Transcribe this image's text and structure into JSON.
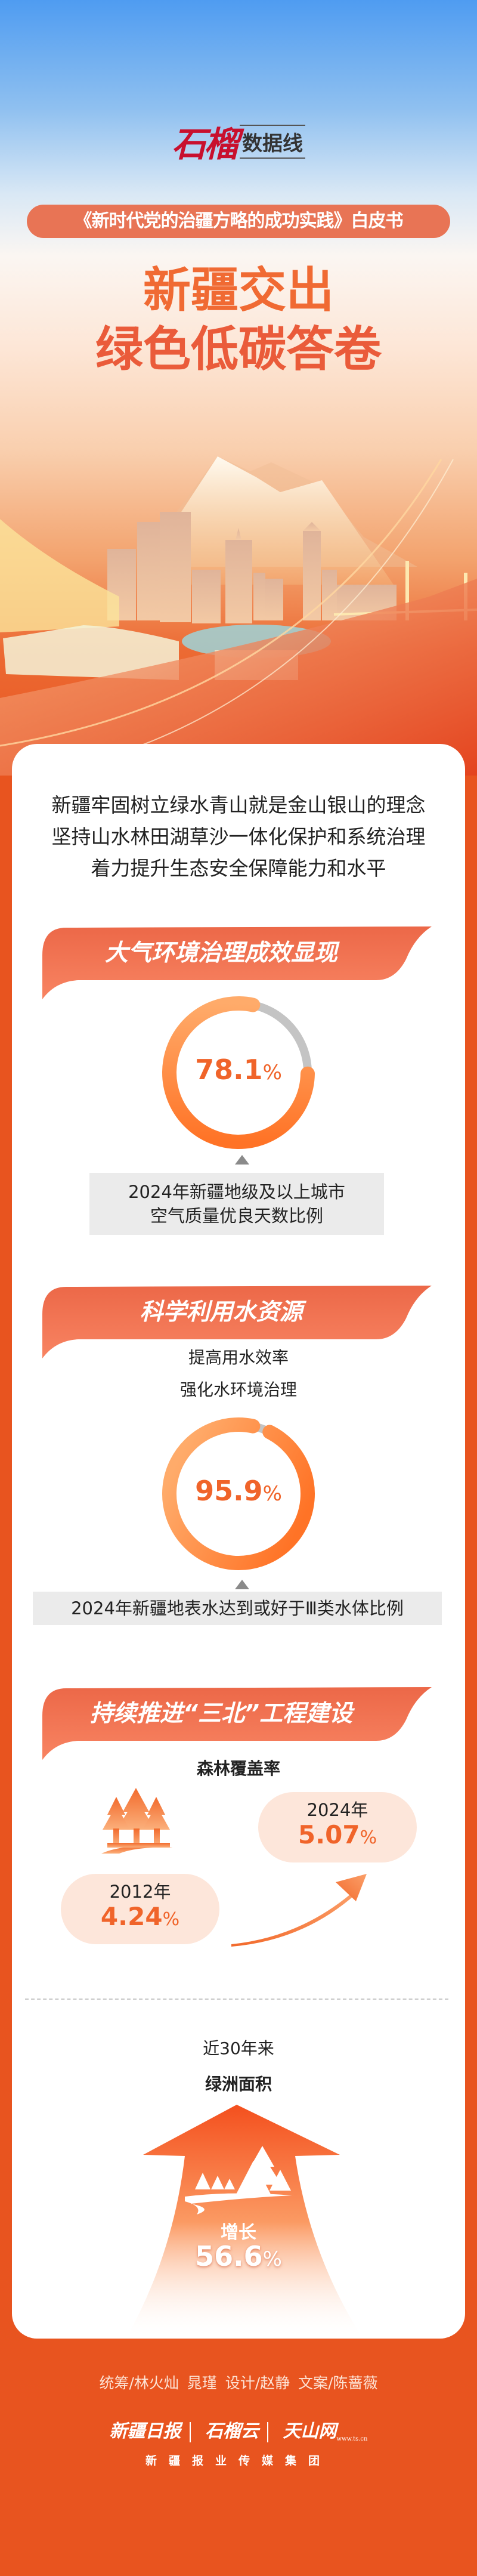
{
  "header": {
    "logo_brand": "石榴",
    "logo_sub": "数据线",
    "subtitle": "《新时代党的治疆方略的成功实践》白皮书",
    "title_line1": "新疆交出",
    "title_line2": "绿色低碳答卷"
  },
  "intro": {
    "lines": [
      "新疆牢固树立绿水青山就是金山银山的理念",
      "坚持山水林田湖草沙一体化保护和系统治理",
      "着力提升生态安全保障能力和水平"
    ]
  },
  "colors": {
    "accent": "#f0642a",
    "ring_light": "#ffab6a",
    "ring_dark": "#ff7326",
    "ring_rest": "#c4c4c4",
    "banner": "#ef6c4a",
    "footer": "#e8541f"
  },
  "section_air": {
    "heading": "大气环境治理成效显现",
    "value": "78.1",
    "unit": "%",
    "percent": 78.1,
    "caption_line1": "2024年新疆地级及以上城市",
    "caption_line2": "空气质量优良天数比例"
  },
  "section_water": {
    "heading": "科学利用水资源",
    "line1": "提高用水效率",
    "line2": "强化水环境治理",
    "value": "95.9",
    "unit": "%",
    "percent": 95.9,
    "caption": "2024年新疆地表水达到或好于Ⅲ类水体比例"
  },
  "section_sanbei": {
    "heading": "持续推进“三北”工程建设",
    "forest_label": "森林覆盖率",
    "forest_icon": "trees-icon",
    "year_2012": "2012年",
    "value_2012": "4.24",
    "year_2024": "2024年",
    "value_2024": "5.07",
    "unit": "%",
    "oasis_period": "近30年来",
    "oasis_label": "绿洲面积",
    "growth_label": "增长",
    "growth_value": "56.6",
    "oasis_icon": "forest-river-icon"
  },
  "footer": {
    "credits": "统筹/林火灿 晁瑾  设计/赵静  文案/陈蔷薇",
    "logo1": "新疆日报",
    "logo2": "石榴云",
    "logo3": "天山网",
    "logo3_url": "www.ts.cn",
    "group": "新疆报业传媒集团"
  }
}
